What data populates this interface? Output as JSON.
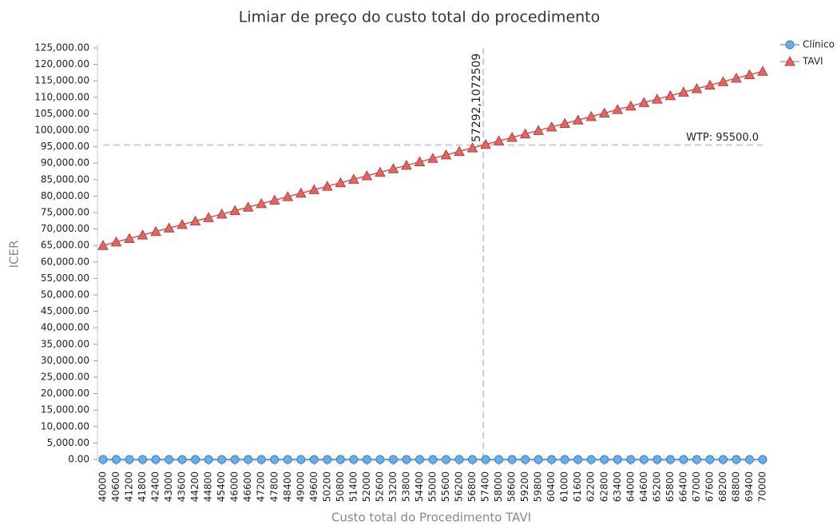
{
  "chart_data": {
    "type": "line",
    "title": "Limiar de preço do custo total do procedimento",
    "x_label": "Custo total do Procedimento TAVI",
    "y_label": "ICER",
    "x": [
      40000,
      40600,
      41200,
      41800,
      42400,
      43000,
      43600,
      44200,
      44800,
      45400,
      46000,
      46600,
      47200,
      47800,
      48400,
      49000,
      49600,
      50200,
      50800,
      51400,
      52000,
      52600,
      53200,
      53800,
      54400,
      55000,
      55600,
      56200,
      56800,
      57400,
      58000,
      58600,
      59200,
      59800,
      60400,
      61000,
      61600,
      62200,
      62800,
      63400,
      64000,
      64600,
      65200,
      65800,
      66400,
      67000,
      67600,
      68200,
      68800,
      69400,
      70000
    ],
    "series": [
      {
        "name": "Clínico",
        "color": "#6aaee8",
        "marker": "circle",
        "values": [
          0,
          0,
          0,
          0,
          0,
          0,
          0,
          0,
          0,
          0,
          0,
          0,
          0,
          0,
          0,
          0,
          0,
          0,
          0,
          0,
          0,
          0,
          0,
          0,
          0,
          0,
          0,
          0,
          0,
          0,
          0,
          0,
          0,
          0,
          0,
          0,
          0,
          0,
          0,
          0,
          0,
          0,
          0,
          0,
          0,
          0,
          0,
          0,
          0,
          0,
          0
        ]
      },
      {
        "name": "TAVI",
        "color": "#e06666",
        "marker": "triangle",
        "values": [
          65000,
          66058,
          67117,
          68175,
          69233,
          70292,
          71350,
          72408,
          73466,
          74525,
          75583,
          76641,
          77700,
          78758,
          79816,
          80874,
          81933,
          82991,
          84049,
          85107,
          86166,
          87224,
          88282,
          89341,
          90399,
          91457,
          92515,
          93574,
          94632,
          95690,
          96749,
          97807,
          98865,
          99923,
          100982,
          102040,
          103098,
          104157,
          105215,
          106273,
          107331,
          108390,
          109448,
          110506,
          111565,
          112623,
          113681,
          114739,
          115798,
          116856,
          117914
        ]
      }
    ],
    "xlim": [
      40000,
      70000
    ],
    "xticks": [
      40000,
      40600,
      41200,
      41800,
      42400,
      43000,
      43600,
      44200,
      44800,
      45400,
      46000,
      46600,
      47200,
      47800,
      48400,
      49000,
      49600,
      50200,
      50800,
      51400,
      52000,
      52600,
      53200,
      53800,
      54400,
      55000,
      55600,
      56200,
      56800,
      57400,
      58000,
      58600,
      59200,
      59800,
      60400,
      61000,
      61600,
      62200,
      62800,
      63400,
      64000,
      64600,
      65200,
      65800,
      66400,
      67000,
      67600,
      68200,
      68800,
      69400,
      70000
    ],
    "ylim": [
      0,
      125000
    ],
    "yticks": [
      {
        "value": 0,
        "label": "0.00"
      },
      {
        "value": 5000,
        "label": "5,000.00"
      },
      {
        "value": 10000,
        "label": "10,000.00"
      },
      {
        "value": 15000,
        "label": "15,000.00"
      },
      {
        "value": 20000,
        "label": "20,000.00"
      },
      {
        "value": 25000,
        "label": "25,000.00"
      },
      {
        "value": 30000,
        "label": "30,000.00"
      },
      {
        "value": 35000,
        "label": "35,000.00"
      },
      {
        "value": 40000,
        "label": "40,000.00"
      },
      {
        "value": 45000,
        "label": "45,000.00"
      },
      {
        "value": 50000,
        "label": "50,000.00"
      },
      {
        "value": 55000,
        "label": "55,000.00"
      },
      {
        "value": 60000,
        "label": "60,000.00"
      },
      {
        "value": 65000,
        "label": "65,000.00"
      },
      {
        "value": 70000,
        "label": "70,000.00"
      },
      {
        "value": 75000,
        "label": "75,000.00"
      },
      {
        "value": 80000,
        "label": "80,000.00"
      },
      {
        "value": 85000,
        "label": "85,000.00"
      },
      {
        "value": 90000,
        "label": "90,000.00"
      },
      {
        "value": 95000,
        "label": "95,000.00"
      },
      {
        "value": 100000,
        "label": "100,000.00"
      },
      {
        "value": 105000,
        "label": "105,000.00"
      },
      {
        "value": 110000,
        "label": "110,000.00"
      },
      {
        "value": 115000,
        "label": "115,000.00"
      },
      {
        "value": 120000,
        "label": "120,000.00"
      },
      {
        "value": 125000,
        "label": "125,000.00"
      }
    ],
    "annotations": [
      {
        "text": "57292,1072509",
        "x": 57292.1072509
      },
      {
        "text": "WTP: 95500.0",
        "y": 95500
      }
    ],
    "legend": "top-right"
  }
}
